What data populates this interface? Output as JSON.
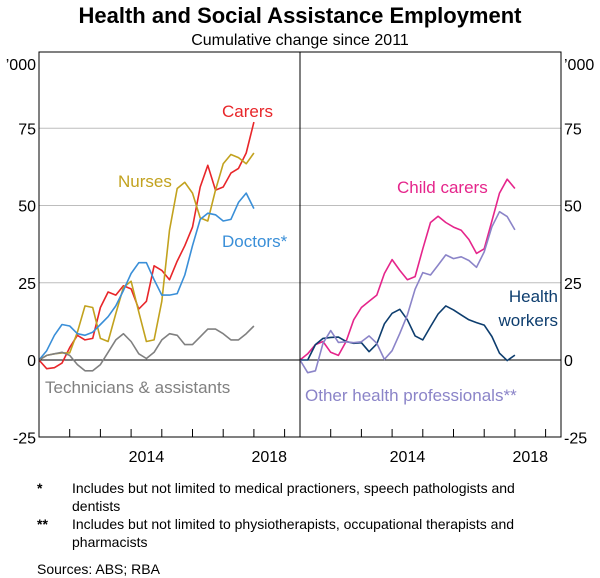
{
  "chart_data": {
    "type": "line",
    "title": "Health and Social Assistance Employment",
    "subtitle": "Cumulative change since 2011",
    "unit_label": "’000",
    "ylim": [
      -25,
      100
    ],
    "yticks": [
      -25,
      0,
      25,
      50,
      75
    ],
    "xlim": [
      2011,
      2019.5
    ],
    "xtick_labels": [
      "2014",
      "2018"
    ],
    "grid": true,
    "x_start": 2011,
    "x_step": 0.25,
    "panels": [
      {
        "series": [
          {
            "name": "Carers",
            "color": "#e8262a",
            "values": [
              0,
              -2.8,
              -2.5,
              -1,
              4,
              8,
              6.5,
              7,
              17,
              22,
              21,
              24,
              23,
              16.5,
              19,
              30.5,
              29,
              26,
              32,
              37,
              43,
              56,
              63,
              55,
              56,
              60.5,
              62,
              67,
              77
            ]
          },
          {
            "name": "Nurses",
            "color": "#c2a21e",
            "values": [
              0,
              1.5,
              2,
              2.3,
              2.3,
              9,
              17.5,
              17,
              7,
              6,
              15,
              23.5,
              25.5,
              15.5,
              6,
              6.5,
              19,
              42,
              55.5,
              57.5,
              54,
              46,
              45,
              55,
              63.5,
              66.5,
              65.5,
              63.5,
              67
            ]
          },
          {
            "name": "Doctors*",
            "color": "#3a8fd8",
            "values": [
              0,
              3,
              8,
              11.5,
              11,
              8.5,
              8,
              9,
              11.5,
              14,
              17.5,
              22.5,
              28,
              31.5,
              31.5,
              26,
              21,
              21,
              21.5,
              27.5,
              37,
              45.5,
              47.5,
              47,
              45,
              45.5,
              51,
              54,
              49
            ]
          },
          {
            "name": "Technicians & assistants",
            "color": "#808080",
            "values": [
              0,
              1.5,
              2,
              2.5,
              1.5,
              -1.5,
              -3.5,
              -3.5,
              -1.5,
              2.5,
              6.5,
              8.5,
              6,
              2,
              0.5,
              2.5,
              6.5,
              8.5,
              8,
              5,
              5,
              7.5,
              10,
              10,
              8.5,
              6.5,
              6.5,
              8.5,
              11
            ]
          }
        ]
      },
      {
        "series": [
          {
            "name": "Child carers",
            "color": "#e5258b",
            "values": [
              0,
              2,
              5,
              6,
              2.5,
              1.5,
              6,
              13,
              17,
              19,
              21,
              28,
              32.5,
              29,
              26,
              27,
              36,
              44.5,
              46.5,
              44.5,
              43,
              42,
              39,
              34.5,
              36,
              45,
              54,
              58.5,
              55.5
            ]
          },
          {
            "name": "Health workers",
            "color": "#0d3d6e",
            "values": [
              0,
              0,
              5,
              7,
              7.3,
              7.4,
              6,
              5.4,
              5.6,
              2.7,
              5.2,
              11.7,
              15.1,
              16.4,
              13,
              7.8,
              6.5,
              10.8,
              14.9,
              17.5,
              16.2,
              14.6,
              13,
              12.1,
              11.3,
              7.6,
              2.2,
              -0.2,
              1.6
            ]
          },
          {
            "name": "Other health professionals**",
            "color": "#8b84c8",
            "values": [
              0,
              -4.1,
              -3.5,
              5.4,
              9.5,
              5.7,
              5.9,
              5.6,
              5.9,
              7.8,
              5.4,
              0.2,
              3,
              8.6,
              14.6,
              22.9,
              28.3,
              27.5,
              30.7,
              34,
              32.8,
              33.4,
              32.2,
              30,
              35,
              43.1,
              48,
              46.4,
              42.1
            ]
          }
        ]
      }
    ]
  },
  "footnotes": [
    {
      "mark": "*",
      "text": "Includes but not limited to medical practioners, speech pathologists and dentists"
    },
    {
      "mark": "**",
      "text": "Includes but not limited to physiotherapists, occupational therapists and pharmacists"
    }
  ],
  "sources": "Sources: ABS; RBA"
}
